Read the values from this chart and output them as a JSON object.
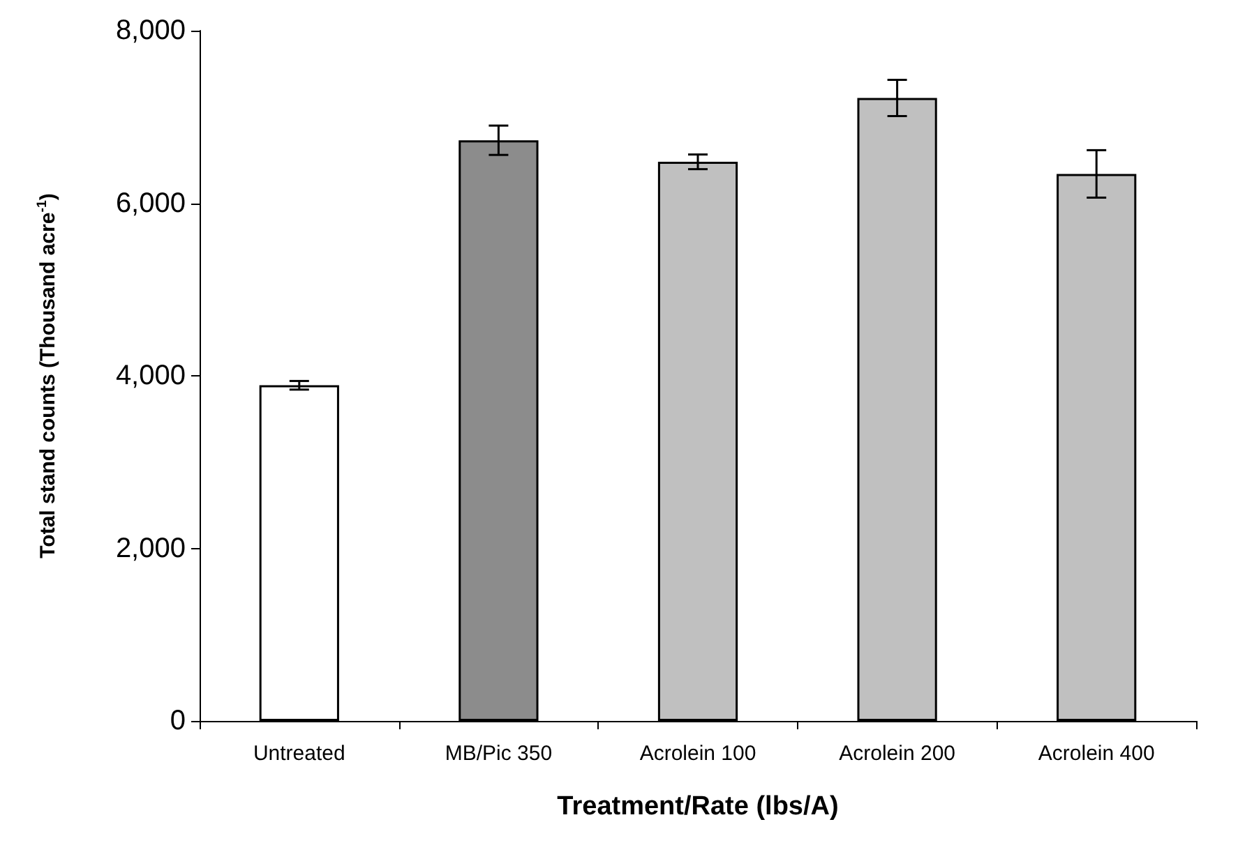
{
  "chart_data": {
    "type": "bar",
    "xlabel": "Treatment/Rate (lbs/A)",
    "ylabel": "Total stand counts (Thousand acre$^{-1}$)",
    "categories": [
      "Untreated",
      "MB/Pic 350",
      "Acrolein 100",
      "Acrolein 200",
      "Acrolein 400"
    ],
    "values": [
      3890,
      6730,
      6480,
      7220,
      6340
    ],
    "errors": [
      50,
      170,
      85,
      210,
      275
    ],
    "colors": [
      "#ffffff",
      "#8c8c8c",
      "#c0c0c0",
      "#c0c0c0",
      "#c0c0c0"
    ],
    "ylim": [
      0,
      8000
    ],
    "yticks": [
      0,
      {
        "value": 2000,
        "label": "2,000"
      },
      {
        "value": 4000,
        "label": "4,000"
      },
      {
        "value": 6000,
        "label": "6,000"
      },
      {
        "value": 8000,
        "label": "8,000"
      }
    ]
  }
}
